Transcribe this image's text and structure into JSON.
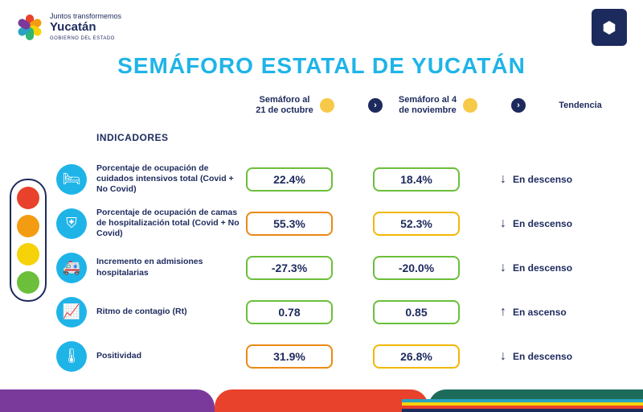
{
  "brand": {
    "slogan": "Juntos transformemos",
    "name": "Yucatán",
    "sub": "GOBIERNO DEL ESTADO",
    "petal_colors": [
      "#e8412c",
      "#f39c12",
      "#f6d20b",
      "#2fb672",
      "#29a3c2",
      "#7a3a9c"
    ]
  },
  "title": {
    "text": "SEMÁFORO ESTATAL DE YUCATÁN",
    "color": "#1fb4e8",
    "fontsize": 28
  },
  "columns": {
    "c1": {
      "label": "Semáforo al 21 de octubre",
      "dot_color": "#f7c948"
    },
    "c2": {
      "label": "Semáforo al 4 de noviembre",
      "dot_color": "#f7c948"
    },
    "trend": "Tendencia"
  },
  "indicadores_title": "INDICADORES",
  "semaforo_lights": [
    "#e8412c",
    "#f39c12",
    "#f6d20b",
    "#6bbf3a"
  ],
  "pill_palette": {
    "green": "#6bbf3a",
    "yellow": "#f2b705",
    "orange": "#e98a15"
  },
  "icon_bg": "#1fb4e8",
  "rows": [
    {
      "icon": "🛏",
      "label": "Porcentaje de ocupación de cuidados intensivos total (Covid + No Covid)",
      "v1": "22.4%",
      "c1": "green",
      "v2": "18.4%",
      "c2": "green",
      "trend_dir": "down",
      "trend_text": "En descenso"
    },
    {
      "icon": "⛨",
      "label": "Porcentaje de ocupación de camas de hospitalización total (Covid + No Covid)",
      "v1": "55.3%",
      "c1": "orange",
      "v2": "52.3%",
      "c2": "yellow",
      "trend_dir": "down",
      "trend_text": "En descenso"
    },
    {
      "icon": "🚑",
      "label": "Incremento en admisiones hospitalarias",
      "v1": "-27.3%",
      "c1": "green",
      "v2": "-20.0%",
      "c2": "green",
      "trend_dir": "down",
      "trend_text": "En descenso"
    },
    {
      "icon": "📈",
      "label": "Ritmo de contagio (Rt)",
      "v1": "0.78",
      "c1": "green",
      "v2": "0.85",
      "c2": "green",
      "trend_dir": "up",
      "trend_text": "En ascenso"
    },
    {
      "icon": "🌡",
      "label": "Positividad",
      "v1": "31.9%",
      "c1": "orange",
      "v2": "26.8%",
      "c2": "yellow",
      "trend_dir": "down",
      "trend_text": "En descenso"
    }
  ],
  "footer_colors": {
    "left": "#7a3a9c",
    "mid": "#e8412c",
    "right": "#1d6b5b",
    "stripes": [
      "#29a3c2",
      "#f6d20b",
      "#e8412c",
      "#1d2a5d"
    ]
  }
}
